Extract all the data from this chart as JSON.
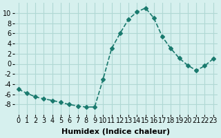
{
  "x": [
    0,
    1,
    2,
    3,
    4,
    5,
    6,
    7,
    8,
    9,
    10,
    11,
    12,
    13,
    14,
    15,
    16,
    17,
    18,
    19,
    20,
    21,
    22,
    23
  ],
  "y": [
    -5.0,
    -5.8,
    -6.5,
    -6.9,
    -7.2,
    -7.6,
    -8.0,
    -8.3,
    -8.5,
    -8.5,
    -3.0,
    3.0,
    6.0,
    8.8,
    10.2,
    11.0,
    9.0,
    5.3,
    3.0,
    1.1,
    -0.3,
    -1.3,
    -0.4,
    1.0
  ],
  "line_color": "#1a7a6e",
  "marker": "D",
  "marker_size": 3,
  "bg_color": "#d6f0ee",
  "grid_color": "#b0d8d4",
  "xlabel": "Humidex (Indice chaleur)",
  "xlim": [
    -0.5,
    23.5
  ],
  "ylim": [
    -10,
    12
  ],
  "yticks": [
    -8,
    -6,
    -4,
    -2,
    0,
    2,
    4,
    6,
    8,
    10
  ],
  "xticks": [
    0,
    1,
    2,
    3,
    4,
    5,
    6,
    7,
    8,
    9,
    10,
    11,
    12,
    13,
    14,
    15,
    16,
    17,
    18,
    19,
    20,
    21,
    22,
    23
  ],
  "tick_fontsize": 7,
  "label_fontsize": 8
}
